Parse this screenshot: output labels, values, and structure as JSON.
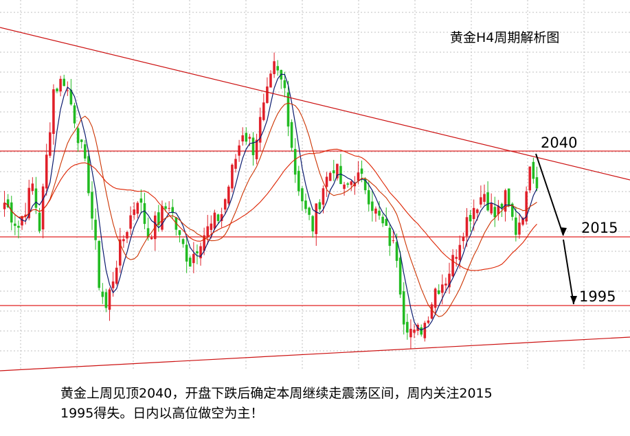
{
  "chart_data": {
    "type": "candlestick",
    "title": "黄金H4周期解析图",
    "price_levels": [
      {
        "label": "2040",
        "value": 2040
      },
      {
        "label": "2015",
        "value": 2015
      },
      {
        "label": "1995",
        "value": 1995
      }
    ],
    "annotation": {
      "line1": "黄金上周见顶2040，开盘下跌后确定本周继续走震荡区间，周内关注2015",
      "line2": "1995得失。日内以高位做空为主！"
    },
    "ylim": [
      1978,
      2082
    ],
    "bars": 176,
    "anchors": [
      [
        0,
        2025
      ],
      [
        4,
        2018
      ],
      [
        8,
        2030
      ],
      [
        10,
        2018
      ],
      [
        14,
        2058
      ],
      [
        17,
        2061
      ],
      [
        20,
        2050
      ],
      [
        24,
        2030
      ],
      [
        27,
        2002
      ],
      [
        29,
        1994
      ],
      [
        32,
        2008
      ],
      [
        35,
        2018
      ],
      [
        38,
        2027
      ],
      [
        41,
        2016
      ],
      [
        44,
        2020
      ],
      [
        47,
        2025
      ],
      [
        50,
        2014
      ],
      [
        53,
        2008
      ],
      [
        56,
        2015
      ],
      [
        59,
        2018
      ],
      [
        62,
        2022
      ],
      [
        65,
        2034
      ],
      [
        68,
        2046
      ],
      [
        71,
        2041
      ],
      [
        74,
        2052
      ],
      [
        77,
        2064
      ],
      [
        80,
        2058
      ],
      [
        83,
        2034
      ],
      [
        86,
        2022
      ],
      [
        88,
        2018
      ],
      [
        91,
        2030
      ],
      [
        94,
        2036
      ],
      [
        97,
        2028
      ],
      [
        100,
        2033
      ],
      [
        103,
        2030
      ],
      [
        106,
        2022
      ],
      [
        109,
        2016
      ],
      [
        112,
        2010
      ],
      [
        114,
        1992
      ],
      [
        117,
        1986
      ],
      [
        120,
        1990
      ],
      [
        123,
        2000
      ],
      [
        126,
        2003
      ],
      [
        128,
        2008
      ],
      [
        131,
        2018
      ],
      [
        134,
        2024
      ],
      [
        137,
        2028
      ],
      [
        140,
        2021
      ],
      [
        143,
        2026
      ],
      [
        146,
        2017
      ],
      [
        149,
        2026
      ],
      [
        150,
        2038
      ],
      [
        152,
        2031
      ]
    ],
    "series": [
      {
        "name": "",
        "color": "#0a1a6e",
        "type": "ma",
        "period": 5
      },
      {
        "name": "",
        "color": "#cc3300",
        "type": "ma",
        "period": 12
      },
      {
        "name": "",
        "color": "#dd2200",
        "type": "ma",
        "period": 30
      }
    ],
    "colors": {
      "up": "#e0202a",
      "down": "#22bb22",
      "level": "#e02020",
      "trend": "#cc1111",
      "arrow": "#000000"
    }
  }
}
